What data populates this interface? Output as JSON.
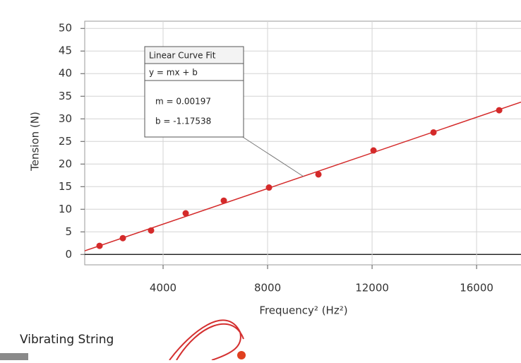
{
  "chart_data": {
    "type": "scatter",
    "x_label": "Frequency² (Hz²)",
    "y_label": "Tension (N)",
    "x": [
      1568,
      2460,
      3540,
      4865,
      6324,
      8054,
      9946,
      12054,
      14351,
      16865
    ],
    "series": [
      {
        "name": "Tension",
        "color": "#d42a2a",
        "values": [
          1.9,
          3.6,
          5.3,
          9.1,
          11.9,
          14.8,
          17.7,
          23.0,
          27.0,
          31.9
        ]
      }
    ],
    "xlim": [
      1000,
      17700
    ],
    "ylim": [
      -2.3,
      51.6
    ],
    "xticks": [
      4000,
      8000,
      12000,
      16000
    ],
    "yticks": [
      0,
      5,
      10,
      15,
      20,
      25,
      30,
      35,
      40,
      45,
      50
    ],
    "grid": true,
    "fit": {
      "title": "Linear Curve Fit",
      "equation": "y = mx + b",
      "m": {
        "value": 0.00197,
        "label": "m = 0.00197"
      },
      "b": {
        "value": -1.17538,
        "label": "b = -1.17538"
      },
      "color": "#d42a2a"
    },
    "caption": "Vibrating String"
  }
}
